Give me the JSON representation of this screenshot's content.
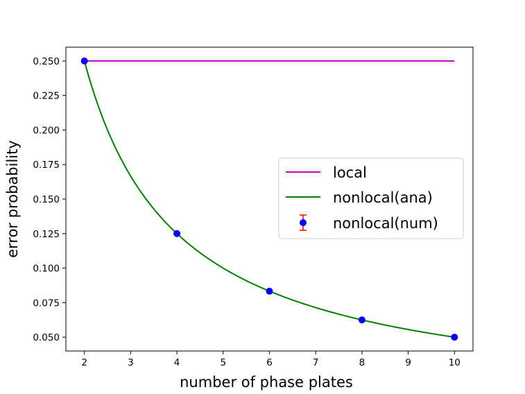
{
  "chart_data": {
    "type": "line",
    "title": "",
    "xlabel": "number of phase plates",
    "ylabel": "error probability",
    "xlim": [
      1.6,
      10.4
    ],
    "ylim": [
      0.04,
      0.26
    ],
    "xticks": [
      2,
      3,
      4,
      5,
      6,
      7,
      8,
      9,
      10
    ],
    "xtick_labels": [
      "2",
      "3",
      "4",
      "5",
      "6",
      "7",
      "8",
      "9",
      "10"
    ],
    "yticks": [
      0.05,
      0.075,
      0.1,
      0.125,
      0.15,
      0.175,
      0.2,
      0.225,
      0.25
    ],
    "ytick_labels": [
      "0.050",
      "0.075",
      "0.100",
      "0.125",
      "0.150",
      "0.175",
      "0.200",
      "0.225",
      "0.250"
    ],
    "grid": false,
    "legend_position": "center-right",
    "series": [
      {
        "name": "local",
        "kind": "line",
        "color": "#bf00bf",
        "x": [
          2,
          10
        ],
        "y": [
          0.25,
          0.25
        ]
      },
      {
        "name": "nonlocal(ana)",
        "kind": "line",
        "color": "#008000",
        "formula": "1/(2n)",
        "x_range": [
          2,
          10
        ]
      },
      {
        "name": "nonlocal(num)",
        "kind": "scatter",
        "color": "#0000ff",
        "errorbar_color": "#ff0000",
        "x": [
          2,
          4,
          6,
          8,
          10
        ],
        "y": [
          0.25,
          0.125,
          0.0833,
          0.0625,
          0.05
        ]
      }
    ]
  }
}
